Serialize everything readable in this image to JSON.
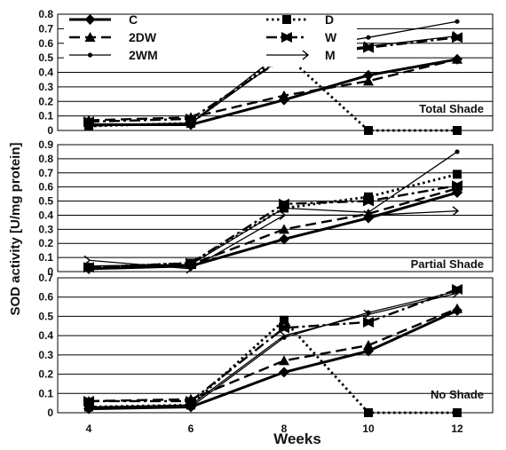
{
  "chart_data": [
    {
      "type": "line",
      "title": "Total Shade",
      "x": [
        4,
        6,
        8,
        10,
        12
      ],
      "ylim": [
        0,
        0.8
      ],
      "yticks": [
        0,
        0.1,
        0.2,
        0.3,
        0.4,
        0.5,
        0.6,
        0.7,
        0.8
      ],
      "yticklabels": [
        "0",
        "0.1",
        "0.2",
        "0.3",
        "0.4",
        "0.5",
        "0.6",
        "0.7",
        "0.8"
      ],
      "series": [
        {
          "name": "C",
          "values": [
            0.04,
            0.04,
            0.21,
            0.38,
            0.49
          ]
        },
        {
          "name": "2DW",
          "values": [
            0.07,
            0.09,
            0.24,
            0.34,
            0.49
          ]
        },
        {
          "name": "2WM",
          "values": [
            0.04,
            0.05,
            0.55,
            0.64,
            0.75
          ]
        },
        {
          "name": "D",
          "values": [
            0.03,
            0.05,
            0.53,
            0.0,
            0.0
          ]
        },
        {
          "name": "W",
          "values": [
            0.06,
            0.08,
            0.5,
            0.57,
            0.64
          ]
        },
        {
          "name": "M",
          "values": [
            0.03,
            0.05,
            0.51,
            0.58,
            0.65
          ]
        }
      ]
    },
    {
      "type": "line",
      "title": "Partial Shade",
      "x": [
        4,
        6,
        8,
        10,
        12
      ],
      "ylim": [
        0,
        0.9
      ],
      "yticks": [
        0,
        0.1,
        0.2,
        0.3,
        0.4,
        0.5,
        0.6,
        0.7,
        0.8,
        0.9
      ],
      "yticklabels": [
        "0",
        "0.1",
        "0.2",
        "0.3",
        "0.4",
        "0.5",
        "0.6",
        "0.7",
        "0.8",
        "0.9"
      ],
      "ylabel": "SOD activity [U/mg protein]",
      "series": [
        {
          "name": "C",
          "values": [
            0.02,
            0.04,
            0.23,
            0.38,
            0.56
          ]
        },
        {
          "name": "2DW",
          "values": [
            0.03,
            0.05,
            0.3,
            0.41,
            0.59
          ]
        },
        {
          "name": "2WM",
          "values": [
            0.04,
            0.05,
            0.45,
            0.42,
            0.85
          ]
        },
        {
          "name": "D",
          "values": [
            0.03,
            0.06,
            0.45,
            0.53,
            0.69
          ]
        },
        {
          "name": "W",
          "values": [
            0.03,
            0.06,
            0.48,
            0.5,
            0.61
          ]
        },
        {
          "name": "M",
          "values": [
            0.08,
            0.02,
            0.4,
            0.4,
            0.43
          ]
        }
      ]
    },
    {
      "type": "line",
      "title": "No Shade",
      "x": [
        4,
        6,
        8,
        10,
        12
      ],
      "ylim": [
        0,
        0.7
      ],
      "yticks": [
        0,
        0.1,
        0.2,
        0.3,
        0.4,
        0.5,
        0.6,
        0.7
      ],
      "yticklabels": [
        "0",
        "0.1",
        "0.2",
        "0.3",
        "0.4",
        "0.5",
        "0.6",
        "0.7"
      ],
      "xticklabels": [
        "4",
        "6",
        "8",
        "10",
        "12"
      ],
      "xlabel": "Weeks",
      "series": [
        {
          "name": "C",
          "values": [
            0.02,
            0.03,
            0.21,
            0.32,
            0.53
          ]
        },
        {
          "name": "2DW",
          "values": [
            0.06,
            0.07,
            0.27,
            0.35,
            0.54
          ]
        },
        {
          "name": "2WM",
          "values": [
            0.03,
            0.03,
            0.39,
            0.52,
            0.63
          ]
        },
        {
          "name": "D",
          "values": [
            0.03,
            0.04,
            0.48,
            0.0,
            0.0
          ]
        },
        {
          "name": "W",
          "values": [
            0.06,
            0.06,
            0.44,
            0.47,
            0.64
          ]
        },
        {
          "name": "M",
          "values": [
            0.03,
            0.04,
            0.4,
            0.51,
            0.62
          ]
        }
      ]
    }
  ],
  "legend": [
    {
      "label": "C",
      "marker": "diamond-icon",
      "line": "solid-thick"
    },
    {
      "label": "D",
      "marker": "square-icon",
      "line": "dotted"
    },
    {
      "label": "2DW",
      "marker": "triangle-icon",
      "line": "long-dash"
    },
    {
      "label": "W",
      "marker": "bowtie-icon",
      "line": "dash-dot"
    },
    {
      "label": "2WM",
      "marker": "small-dot-icon",
      "line": "solid-thin"
    },
    {
      "label": "M",
      "marker": "open-arrow-icon",
      "line": "solid-thin"
    }
  ],
  "colors": {
    "line": "#000000",
    "grid": "#000000",
    "background": "#ffffff"
  }
}
